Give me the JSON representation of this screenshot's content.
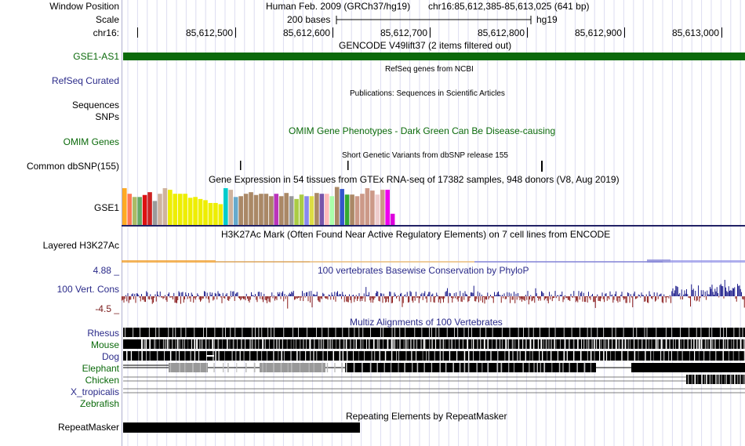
{
  "header": {
    "window_position_label": "Window Position",
    "assembly": "Human Feb. 2009 (GRCh37/hg19)",
    "position": "chr16:85,612,385-85,613,025 (641 bp)",
    "scale_label": "Scale",
    "scale_value": "200 bases",
    "scale_db": "hg19",
    "chrom_label": "chr16:",
    "coords": [
      "85,612,500",
      "85,612,600",
      "85,612,700",
      "85,612,800",
      "85,612,900",
      "85,613,000"
    ]
  },
  "tracks": {
    "gencode": {
      "title": "GENCODE V49lift37 (2 items filtered out)",
      "item_label": "GSE1-AS1",
      "color": "#0b6a0b"
    },
    "refseq": {
      "label": "RefSeq Curated",
      "title": "RefSeq genes from NCBI"
    },
    "publications": {
      "label": "Sequences",
      "title": "Publications: Sequences in Scientific Articles"
    },
    "snps": {
      "label": "SNPs"
    },
    "omim": {
      "label": "OMIM Genes",
      "title": "OMIM Gene Phenotypes - Dark Green Can Be Disease-causing",
      "color": "#0b6a0b"
    },
    "dbsnp": {
      "label": "Common dbSNP(155)",
      "title": "Short Genetic Variants from dbSNP release 155"
    },
    "gtex": {
      "label": "GSE1",
      "title": "Gene Expression in 54 tissues from GTEx RNA-seq of 17382 samples, 948 donors (V8, Aug 2019)",
      "values": [
        0.92,
        0.78,
        0.7,
        0.7,
        0.75,
        0.82,
        0.6,
        0.78,
        0.92,
        0.88,
        0.78,
        0.78,
        0.78,
        0.68,
        0.7,
        0.65,
        0.62,
        0.55,
        0.55,
        0.52,
        0.92,
        0.88,
        0.7,
        0.72,
        0.78,
        0.82,
        0.75,
        0.78,
        0.78,
        0.72,
        0.78,
        0.72,
        0.8,
        0.72,
        0.65,
        0.76,
        0.72,
        0.72,
        0.8,
        0.78,
        0.78,
        0.72,
        0.95,
        0.9,
        0.76,
        0.76,
        0.72,
        0.78,
        0.92,
        0.86,
        0.76,
        0.88,
        0.88,
        0.28
      ],
      "colors": [
        "#ffaa22",
        "#ff7755",
        "#aabb66",
        "#66aa66",
        "#dd1111",
        "#cc2222",
        "#9a9a9a",
        "#cfb39e",
        "#cfb39e",
        "#eeee00",
        "#eeee00",
        "#eeee00",
        "#eeee00",
        "#eeee00",
        "#eeee00",
        "#eeee00",
        "#eeee00",
        "#eeee00",
        "#eeee00",
        "#eeee00",
        "#00cccc",
        "#cfb39e",
        "#66aacc",
        "#aa8866",
        "#aa8866",
        "#aa8866",
        "#aa8866",
        "#aa8866",
        "#aa8866",
        "#aa8866",
        "#bb33bb",
        "#aa8866",
        "#aa8866",
        "#999999",
        "#aacc44",
        "#aacc44",
        "#8888ee",
        "#dddd44",
        "#aa8866",
        "#7755aa",
        "#ffbbbb",
        "#aaffaa",
        "#aa8866",
        "#3355cc",
        "#33aa33",
        "#aa8866",
        "#cc9988",
        "#cc9988",
        "#cc9988",
        "#cc9988",
        "#eecccc",
        "#cc9988",
        "#ee00ee",
        "#dd00dd"
      ]
    },
    "h3k27ac": {
      "label": "Layered H3K27Ac",
      "title": "H3K27Ac Mark (Often Found Near Active Regulatory Elements) on 7 cell lines from ENCODE"
    },
    "phylop": {
      "label": "100 Vert. Cons",
      "title": "100 vertebrates Basewise Conservation by PhyloP",
      "max_label": "4.88 _",
      "min_label": "-4.5 _",
      "pos_color": "#1a1a8a",
      "neg_color": "#8a1a1a",
      "range": [
        -4.5,
        4.88
      ]
    },
    "multiz": {
      "title": "Multiz Alignments of 100 Vertebrates",
      "species": [
        {
          "name": "Rhesus",
          "color": "#2b2b8a"
        },
        {
          "name": "Mouse",
          "color": "#0b6a0b"
        },
        {
          "name": "Dog",
          "color": "#2b2b8a"
        },
        {
          "name": "Elephant",
          "color": "#0b6a0b"
        },
        {
          "name": "Chicken",
          "color": "#0b6a0b"
        },
        {
          "name": "X_tropicalis",
          "color": "#2b2b8a"
        },
        {
          "name": "Zebrafish",
          "color": "#0b6a0b"
        }
      ]
    },
    "repeatmasker": {
      "label": "RepeatMasker",
      "title": "Repeating Elements by RepeatMasker"
    }
  }
}
